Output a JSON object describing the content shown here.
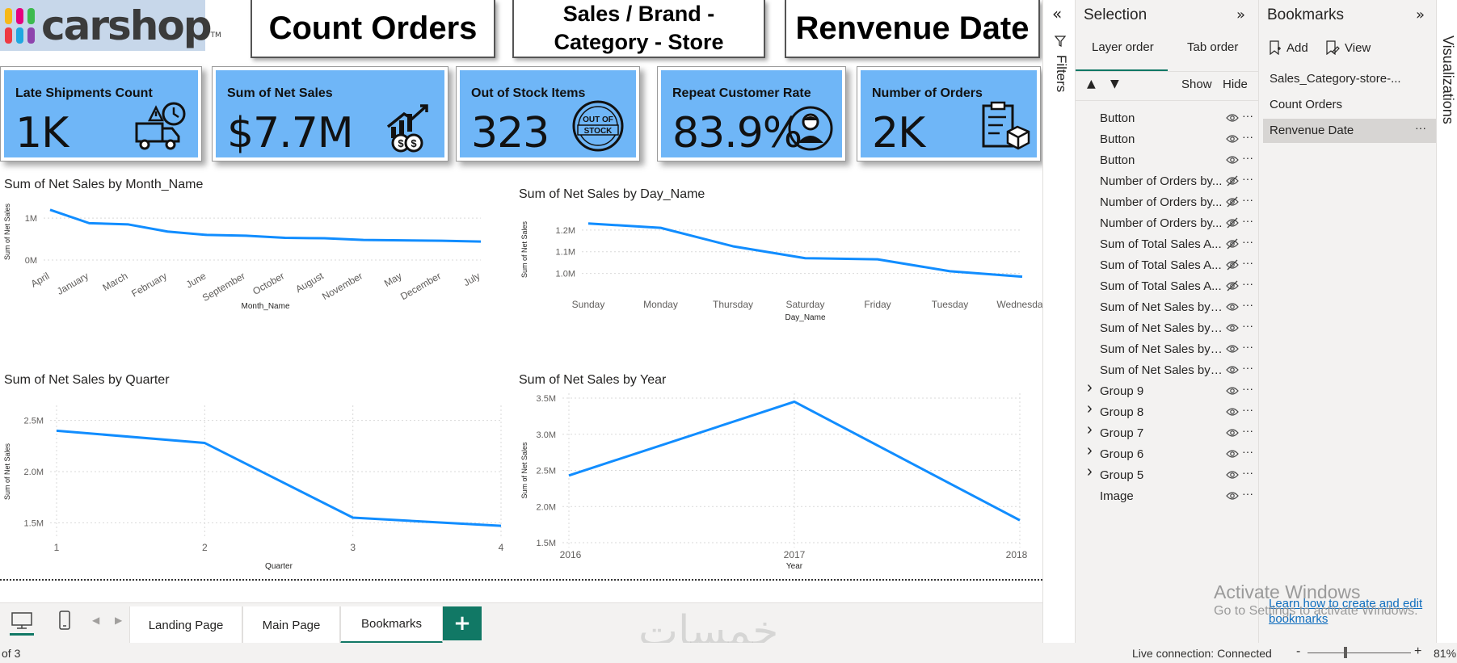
{
  "logo": {
    "text": "carshop",
    "tm": "TM",
    "dot_colors": [
      "#f6b819",
      "#e5007e",
      "#3dba4e",
      "#ee3a43",
      "#1fa7e0",
      "#8e44ad",
      "#f6b819",
      "#1fa7e0",
      "#e5007e"
    ]
  },
  "nav_buttons": {
    "count_orders": "Count Orders",
    "sales_brand": "Sales / Brand - Category - Store",
    "revenue_date": "Renvenue Date"
  },
  "kpis": [
    {
      "label": "Late Shipments Count",
      "value": "1K",
      "icon": "truck-clock-icon"
    },
    {
      "label": "Sum of Net Sales",
      "value": "$7.7M",
      "icon": "money-chart-icon"
    },
    {
      "label": "Out of Stock Items",
      "value": "323",
      "icon": "out-of-stock-stamp-icon",
      "stamp_top": "OUT OF",
      "stamp_bottom": "STOCK"
    },
    {
      "label": "Repeat Customer Rate",
      "value": "83.9%",
      "icon": "customer-icon"
    },
    {
      "label": "Number of Orders",
      "value": "2K",
      "icon": "clipboard-box-icon"
    }
  ],
  "colors": {
    "accent_blue": "#6fb6f7",
    "line_blue": "#118dff",
    "teal": "#117865"
  },
  "chart_data": [
    {
      "type": "line",
      "title": "Sum of Net Sales by Month_Name",
      "xlabel": "Month_Name",
      "ylabel": "Sum of Net Sales",
      "categories": [
        "April",
        "January",
        "March",
        "February",
        "June",
        "September",
        "October",
        "August",
        "November",
        "May",
        "December",
        "July"
      ],
      "values": [
        1.2,
        0.88,
        0.85,
        0.68,
        0.6,
        0.58,
        0.53,
        0.52,
        0.48,
        0.47,
        0.46,
        0.44
      ],
      "ylim": [
        0,
        1.35
      ],
      "yticks": [
        0,
        1
      ],
      "ytick_labels": [
        "0M",
        "1M"
      ]
    },
    {
      "type": "line",
      "title": "Sum of Net Sales by Day_Name",
      "xlabel": "Day_Name",
      "ylabel": "Sum of Net Sales",
      "categories": [
        "Sunday",
        "Monday",
        "Thursday",
        "Saturday",
        "Friday",
        "Tuesday",
        "Wednesday"
      ],
      "values": [
        1.23,
        1.21,
        1.125,
        1.07,
        1.065,
        1.01,
        0.985
      ],
      "ylim": [
        0.95,
        1.27
      ],
      "yticks": [
        1.0,
        1.1,
        1.2
      ],
      "ytick_labels": [
        "1.0M",
        "1.1M",
        "1.2M"
      ]
    },
    {
      "type": "line",
      "title": "Sum of Net Sales by Quarter",
      "xlabel": "Quarter",
      "ylabel": "Sum of Net Sales",
      "categories": [
        "1",
        "2",
        "3",
        "4"
      ],
      "values": [
        2.4,
        2.28,
        1.55,
        1.47
      ],
      "ylim": [
        1.4,
        2.6
      ],
      "yticks": [
        1.5,
        2.0,
        2.5
      ],
      "ytick_labels": [
        "1.5M",
        "2.0M",
        "2.5M"
      ]
    },
    {
      "type": "line",
      "title": "Sum of Net Sales by Year",
      "xlabel": "Year",
      "ylabel": "Sum of Net Sales",
      "categories": [
        "2016",
        "2017",
        "2018"
      ],
      "values": [
        2.43,
        3.45,
        1.81
      ],
      "ylim": [
        1.5,
        3.5
      ],
      "yticks": [
        1.5,
        2.0,
        2.5,
        3.0,
        3.5
      ],
      "ytick_labels": [
        "1.5M",
        "2.0M",
        "2.5M",
        "3.0M",
        "3.5M"
      ]
    }
  ],
  "page_tabs": [
    "Landing Page",
    "Main Page",
    "Bookmarks"
  ],
  "active_tab": "Bookmarks",
  "status": {
    "page_of": "of 3",
    "connection": "Live connection: Connected",
    "zoom": "81%",
    "zoom_minus": "-",
    "zoom_plus": "+"
  },
  "filters": {
    "label": "Filters"
  },
  "selection": {
    "title": "Selection",
    "tabs": [
      "Layer order",
      "Tab order"
    ],
    "show": "Show",
    "hide": "Hide",
    "items": [
      {
        "label": "Button",
        "hidden": false,
        "group": false
      },
      {
        "label": "Button",
        "hidden": false,
        "group": false
      },
      {
        "label": "Button",
        "hidden": false,
        "group": false
      },
      {
        "label": "Number of Orders by...",
        "hidden": true,
        "group": false
      },
      {
        "label": "Number of Orders by...",
        "hidden": true,
        "group": false
      },
      {
        "label": "Number of Orders by...",
        "hidden": true,
        "group": false
      },
      {
        "label": "Sum of Total Sales A...",
        "hidden": true,
        "group": false
      },
      {
        "label": "Sum of Total Sales A...",
        "hidden": true,
        "group": false
      },
      {
        "label": "Sum of Total Sales A...",
        "hidden": true,
        "group": false
      },
      {
        "label": "Sum of Net Sales by ...",
        "hidden": false,
        "group": false
      },
      {
        "label": "Sum of Net Sales by ...",
        "hidden": false,
        "group": false
      },
      {
        "label": "Sum of Net Sales by ...",
        "hidden": false,
        "group": false
      },
      {
        "label": "Sum of Net Sales by ...",
        "hidden": false,
        "group": false
      },
      {
        "label": "Group 9",
        "hidden": false,
        "group": true
      },
      {
        "label": "Group 8",
        "hidden": false,
        "group": true
      },
      {
        "label": "Group 7",
        "hidden": false,
        "group": true
      },
      {
        "label": "Group 6",
        "hidden": false,
        "group": true
      },
      {
        "label": "Group 5",
        "hidden": false,
        "group": true
      },
      {
        "label": "Image",
        "hidden": false,
        "group": false
      }
    ]
  },
  "bookmarks": {
    "title": "Bookmarks",
    "add": "Add",
    "view": "View",
    "items": [
      "Sales_Category-store-...",
      "Count Orders",
      "Renvenue Date"
    ],
    "active_index": 2,
    "help_link": "Learn how to create and edit bookmarks"
  },
  "visualizations": {
    "label": "Visualizations"
  },
  "activate_windows": {
    "title": "Activate Windows",
    "subtitle": "Go to Settings to activate Windows."
  },
  "watermark": "خمسات"
}
